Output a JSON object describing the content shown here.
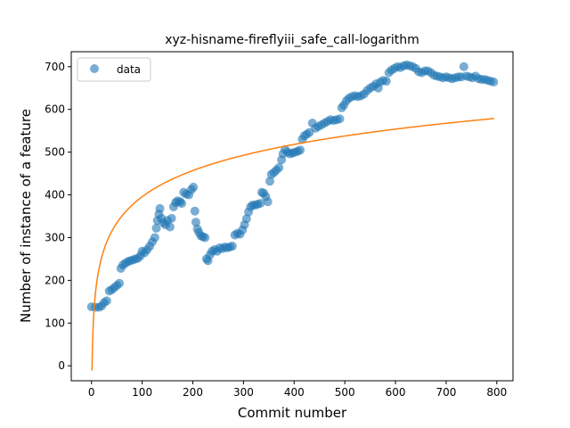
{
  "chart_data": {
    "type": "scatter",
    "title": "xyz-hisname-fireflyiii_safe_call-logarithm",
    "xlabel": "Commit number",
    "ylabel": "Number of instance of a feature",
    "xlim": [
      -40,
      832
    ],
    "ylim": [
      -35,
      735
    ],
    "xticks": [
      0,
      100,
      200,
      300,
      400,
      500,
      600,
      700,
      800
    ],
    "yticks": [
      0,
      100,
      200,
      300,
      400,
      500,
      600,
      700
    ],
    "legend": {
      "position": "top-left",
      "entries": [
        "data"
      ]
    },
    "grid": false,
    "colors": {
      "scatter": "#1f77b4",
      "fit": "#ff7f0e"
    },
    "series": [
      {
        "name": "data",
        "kind": "scatter",
        "points": [
          [
            0,
            138
          ],
          [
            8,
            137
          ],
          [
            15,
            137
          ],
          [
            20,
            140
          ],
          [
            25,
            148
          ],
          [
            30,
            152
          ],
          [
            35,
            175
          ],
          [
            40,
            178
          ],
          [
            45,
            183
          ],
          [
            50,
            188
          ],
          [
            55,
            193
          ],
          [
            58,
            228
          ],
          [
            62,
            236
          ],
          [
            67,
            240
          ],
          [
            72,
            244
          ],
          [
            77,
            246
          ],
          [
            82,
            248
          ],
          [
            87,
            250
          ],
          [
            92,
            252
          ],
          [
            97,
            258
          ],
          [
            100,
            268
          ],
          [
            105,
            265
          ],
          [
            110,
            272
          ],
          [
            115,
            280
          ],
          [
            120,
            290
          ],
          [
            125,
            300
          ],
          [
            128,
            322
          ],
          [
            130,
            340
          ],
          [
            133,
            355
          ],
          [
            135,
            368
          ],
          [
            138,
            345
          ],
          [
            142,
            335
          ],
          [
            146,
            330
          ],
          [
            150,
            340
          ],
          [
            155,
            325
          ],
          [
            158,
            345
          ],
          [
            162,
            372
          ],
          [
            166,
            382
          ],
          [
            170,
            386
          ],
          [
            175,
            384
          ],
          [
            178,
            380
          ],
          [
            182,
            406
          ],
          [
            187,
            402
          ],
          [
            192,
            400
          ],
          [
            197,
            412
          ],
          [
            201,
            418
          ],
          [
            204,
            362
          ],
          [
            206,
            336
          ],
          [
            209,
            320
          ],
          [
            212,
            312
          ],
          [
            216,
            304
          ],
          [
            220,
            302
          ],
          [
            224,
            300
          ],
          [
            227,
            250
          ],
          [
            230,
            246
          ],
          [
            234,
            260
          ],
          [
            238,
            268
          ],
          [
            243,
            272
          ],
          [
            248,
            268
          ],
          [
            253,
            276
          ],
          [
            258,
            274
          ],
          [
            263,
            278
          ],
          [
            268,
            276
          ],
          [
            273,
            278
          ],
          [
            278,
            280
          ],
          [
            283,
            306
          ],
          [
            288,
            310
          ],
          [
            293,
            308
          ],
          [
            298,
            318
          ],
          [
            302,
            330
          ],
          [
            306,
            344
          ],
          [
            310,
            360
          ],
          [
            314,
            372
          ],
          [
            318,
            376
          ],
          [
            323,
            376
          ],
          [
            328,
            378
          ],
          [
            333,
            380
          ],
          [
            336,
            406
          ],
          [
            340,
            404
          ],
          [
            344,
            396
          ],
          [
            348,
            384
          ],
          [
            352,
            432
          ],
          [
            355,
            448
          ],
          [
            360,
            452
          ],
          [
            365,
            458
          ],
          [
            370,
            464
          ],
          [
            375,
            482
          ],
          [
            378,
            496
          ],
          [
            382,
            506
          ],
          [
            387,
            500
          ],
          [
            392,
            496
          ],
          [
            397,
            498
          ],
          [
            402,
            500
          ],
          [
            407,
            502
          ],
          [
            412,
            505
          ],
          [
            416,
            530
          ],
          [
            420,
            538
          ],
          [
            425,
            542
          ],
          [
            430,
            546
          ],
          [
            436,
            568
          ],
          [
            442,
            556
          ],
          [
            448,
            560
          ],
          [
            454,
            564
          ],
          [
            460,
            568
          ],
          [
            466,
            572
          ],
          [
            472,
            576
          ],
          [
            478,
            574
          ],
          [
            484,
            576
          ],
          [
            490,
            578
          ],
          [
            494,
            604
          ],
          [
            498,
            610
          ],
          [
            503,
            620
          ],
          [
            508,
            626
          ],
          [
            514,
            630
          ],
          [
            520,
            632
          ],
          [
            526,
            630
          ],
          [
            532,
            632
          ],
          [
            538,
            636
          ],
          [
            544,
            644
          ],
          [
            550,
            650
          ],
          [
            556,
            654
          ],
          [
            562,
            660
          ],
          [
            566,
            650
          ],
          [
            570,
            664
          ],
          [
            576,
            668
          ],
          [
            582,
            666
          ],
          [
            587,
            686
          ],
          [
            592,
            692
          ],
          [
            598,
            696
          ],
          [
            604,
            700
          ],
          [
            610,
            698
          ],
          [
            616,
            702
          ],
          [
            622,
            704
          ],
          [
            628,
            702
          ],
          [
            634,
            700
          ],
          [
            640,
            696
          ],
          [
            646,
            688
          ],
          [
            652,
            686
          ],
          [
            658,
            690
          ],
          [
            664,
            690
          ],
          [
            670,
            686
          ],
          [
            676,
            680
          ],
          [
            682,
            678
          ],
          [
            688,
            676
          ],
          [
            694,
            674
          ],
          [
            700,
            676
          ],
          [
            706,
            674
          ],
          [
            712,
            672
          ],
          [
            718,
            674
          ],
          [
            724,
            676
          ],
          [
            730,
            676
          ],
          [
            735,
            700
          ],
          [
            740,
            678
          ],
          [
            746,
            676
          ],
          [
            752,
            674
          ],
          [
            758,
            678
          ],
          [
            764,
            672
          ],
          [
            770,
            670
          ],
          [
            776,
            670
          ],
          [
            782,
            668
          ],
          [
            788,
            666
          ],
          [
            794,
            664
          ]
        ]
      },
      {
        "name": "",
        "kind": "line",
        "fit": {
          "model": "a + b*ln(x)",
          "a": -11,
          "b": 88.3,
          "x_range": [
            1,
            795
          ]
        }
      }
    ]
  }
}
